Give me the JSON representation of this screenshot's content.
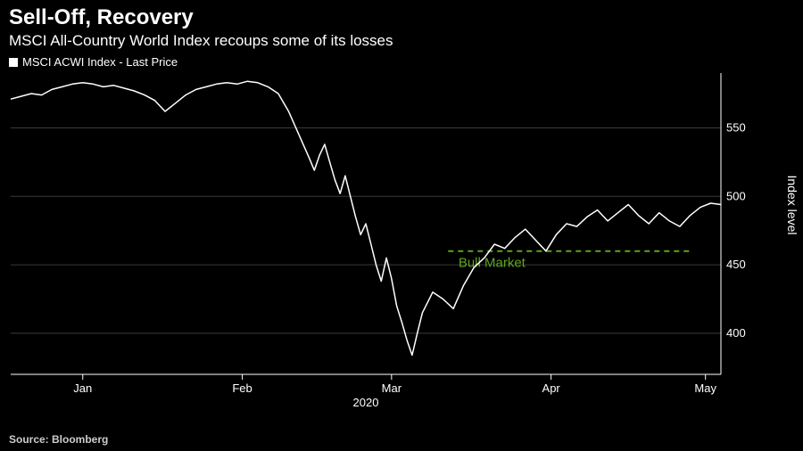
{
  "title": "Sell-Off, Recovery",
  "subtitle": "MSCI All-Country World Index recoups some of its losses",
  "legend_label": "MSCI ACWI Index - Last Price",
  "y_axis_title": "Index level",
  "source": "Source: Bloomberg",
  "chart": {
    "type": "line",
    "background_color": "#000000",
    "line_color": "#ffffff",
    "line_width": 1.5,
    "grid_color": "#3a3a3a",
    "axis_color": "#ffffff",
    "ylim": [
      370,
      590
    ],
    "yticks": [
      400,
      450,
      500,
      550
    ],
    "x_domain_days": 138,
    "x_ticks": [
      {
        "day": 14,
        "label": "Jan"
      },
      {
        "day": 45,
        "label": "Feb"
      },
      {
        "day": 74,
        "label": "Mar"
      },
      {
        "day": 105,
        "label": "Apr"
      },
      {
        "day": 135,
        "label": "May"
      }
    ],
    "x_year_label": "2020",
    "annotation": {
      "text": "Bull Market",
      "y_value": 460,
      "color": "#5fa31f",
      "dash": "6,5",
      "line_x_start_day": 85,
      "line_x_end_day": 132,
      "label_x_day": 87,
      "label_below": true
    },
    "series": [
      {
        "d": 0,
        "v": 571
      },
      {
        "d": 2,
        "v": 573
      },
      {
        "d": 4,
        "v": 575
      },
      {
        "d": 6,
        "v": 574
      },
      {
        "d": 8,
        "v": 578
      },
      {
        "d": 10,
        "v": 580
      },
      {
        "d": 12,
        "v": 582
      },
      {
        "d": 14,
        "v": 583
      },
      {
        "d": 16,
        "v": 582
      },
      {
        "d": 18,
        "v": 580
      },
      {
        "d": 20,
        "v": 581
      },
      {
        "d": 22,
        "v": 579
      },
      {
        "d": 24,
        "v": 577
      },
      {
        "d": 26,
        "v": 574
      },
      {
        "d": 28,
        "v": 570
      },
      {
        "d": 30,
        "v": 562
      },
      {
        "d": 32,
        "v": 568
      },
      {
        "d": 34,
        "v": 574
      },
      {
        "d": 36,
        "v": 578
      },
      {
        "d": 38,
        "v": 580
      },
      {
        "d": 40,
        "v": 582
      },
      {
        "d": 42,
        "v": 583
      },
      {
        "d": 44,
        "v": 582
      },
      {
        "d": 46,
        "v": 584
      },
      {
        "d": 48,
        "v": 583
      },
      {
        "d": 50,
        "v": 580
      },
      {
        "d": 52,
        "v": 575
      },
      {
        "d": 54,
        "v": 562
      },
      {
        "d": 56,
        "v": 545
      },
      {
        "d": 58,
        "v": 528
      },
      {
        "d": 59,
        "v": 519
      },
      {
        "d": 60,
        "v": 530
      },
      {
        "d": 61,
        "v": 538
      },
      {
        "d": 62,
        "v": 525
      },
      {
        "d": 63,
        "v": 512
      },
      {
        "d": 64,
        "v": 502
      },
      {
        "d": 65,
        "v": 515
      },
      {
        "d": 66,
        "v": 500
      },
      {
        "d": 67,
        "v": 485
      },
      {
        "d": 68,
        "v": 472
      },
      {
        "d": 69,
        "v": 480
      },
      {
        "d": 70,
        "v": 465
      },
      {
        "d": 71,
        "v": 450
      },
      {
        "d": 72,
        "v": 438
      },
      {
        "d": 73,
        "v": 455
      },
      {
        "d": 74,
        "v": 440
      },
      {
        "d": 75,
        "v": 420
      },
      {
        "d": 76,
        "v": 408
      },
      {
        "d": 77,
        "v": 395
      },
      {
        "d": 78,
        "v": 384
      },
      {
        "d": 79,
        "v": 400
      },
      {
        "d": 80,
        "v": 415
      },
      {
        "d": 82,
        "v": 430
      },
      {
        "d": 84,
        "v": 425
      },
      {
        "d": 86,
        "v": 418
      },
      {
        "d": 88,
        "v": 435
      },
      {
        "d": 90,
        "v": 448
      },
      {
        "d": 92,
        "v": 455
      },
      {
        "d": 94,
        "v": 465
      },
      {
        "d": 96,
        "v": 462
      },
      {
        "d": 98,
        "v": 470
      },
      {
        "d": 100,
        "v": 476
      },
      {
        "d": 102,
        "v": 468
      },
      {
        "d": 104,
        "v": 460
      },
      {
        "d": 106,
        "v": 472
      },
      {
        "d": 108,
        "v": 480
      },
      {
        "d": 110,
        "v": 478
      },
      {
        "d": 112,
        "v": 485
      },
      {
        "d": 114,
        "v": 490
      },
      {
        "d": 116,
        "v": 482
      },
      {
        "d": 118,
        "v": 488
      },
      {
        "d": 120,
        "v": 494
      },
      {
        "d": 122,
        "v": 486
      },
      {
        "d": 124,
        "v": 480
      },
      {
        "d": 126,
        "v": 488
      },
      {
        "d": 128,
        "v": 482
      },
      {
        "d": 130,
        "v": 478
      },
      {
        "d": 132,
        "v": 486
      },
      {
        "d": 134,
        "v": 492
      },
      {
        "d": 136,
        "v": 495
      },
      {
        "d": 138,
        "v": 494
      }
    ]
  }
}
